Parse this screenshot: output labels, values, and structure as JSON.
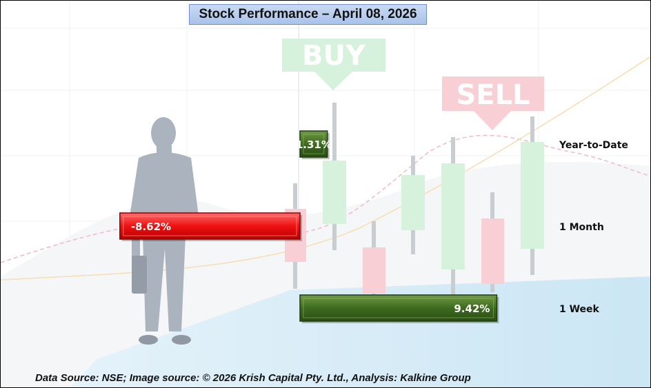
{
  "title": "Stock Performance – April 08, 2026",
  "footer": "Data Source: NSE; Image source: © 2026 Krish Capital Pty. Ltd., Analysis: Kalkine Group",
  "background": {
    "buy_sign": "BUY",
    "sell_sign": "SELL"
  },
  "colors": {
    "positive": "#3d6b1f",
    "negative": "#ee1111",
    "title_bg": "#b8cdef"
  },
  "chart_data": {
    "type": "bar",
    "orientation": "horizontal",
    "categories": [
      "Year-to-Date",
      "1 Month",
      "1 Week"
    ],
    "values": [
      1.31,
      -8.62,
      9.42
    ],
    "value_labels": [
      "1.31%",
      "-8.62%",
      "9.42%"
    ],
    "title": "Stock Performance – April 08, 2026",
    "xlabel": "",
    "ylabel": "",
    "grid": false
  }
}
